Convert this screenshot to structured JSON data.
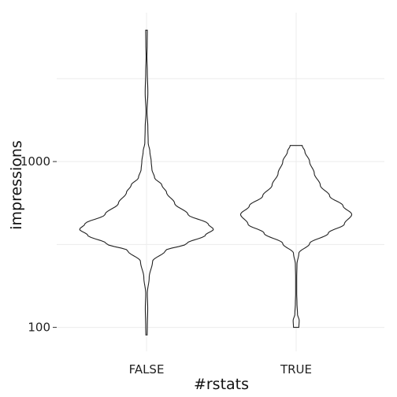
{
  "chart_data": {
    "type": "violin",
    "xlabel": "#rstats",
    "ylabel": "impressions",
    "y_scale": "log10",
    "ylim": [
      80,
      6500
    ],
    "y_ticks": [
      {
        "value": 100,
        "label": "100"
      },
      {
        "value": 1000,
        "label": "1000"
      }
    ],
    "grid": true,
    "categories": [
      "FALSE",
      "TRUE"
    ],
    "series": [
      {
        "category": "FALSE",
        "min": 90,
        "max": 6200,
        "density_profile": [
          [
            90,
            0.01
          ],
          [
            100,
            0.012
          ],
          [
            130,
            0.018
          ],
          [
            160,
            0.012
          ],
          [
            200,
            0.04
          ],
          [
            250,
            0.09
          ],
          [
            290,
            0.28
          ],
          [
            320,
            0.6
          ],
          [
            360,
            0.88
          ],
          [
            390,
            1.0
          ],
          [
            420,
            0.92
          ],
          [
            480,
            0.62
          ],
          [
            560,
            0.42
          ],
          [
            650,
            0.3
          ],
          [
            720,
            0.23
          ],
          [
            800,
            0.12
          ],
          [
            900,
            0.08
          ],
          [
            1000,
            0.07
          ],
          [
            1150,
            0.05
          ],
          [
            1300,
            0.025
          ],
          [
            1600,
            0.02
          ],
          [
            2000,
            0.008
          ],
          [
            2600,
            0.02
          ],
          [
            3500,
            0.012
          ],
          [
            4300,
            0.006
          ],
          [
            5000,
            0.01
          ],
          [
            6200,
            0.012
          ]
        ]
      },
      {
        "category": "TRUE",
        "min": 100,
        "max": 1250,
        "density_profile": [
          [
            100,
            0.04
          ],
          [
            110,
            0.045
          ],
          [
            120,
            0.02
          ],
          [
            140,
            0.012
          ],
          [
            160,
            0.008
          ],
          [
            200,
            0.008
          ],
          [
            240,
            0.012
          ],
          [
            280,
            0.04
          ],
          [
            320,
            0.2
          ],
          [
            370,
            0.48
          ],
          [
            420,
            0.72
          ],
          [
            480,
            0.83
          ],
          [
            540,
            0.7
          ],
          [
            620,
            0.5
          ],
          [
            720,
            0.36
          ],
          [
            850,
            0.27
          ],
          [
            1000,
            0.2
          ],
          [
            1150,
            0.13
          ],
          [
            1250,
            0.09
          ]
        ]
      }
    ]
  }
}
